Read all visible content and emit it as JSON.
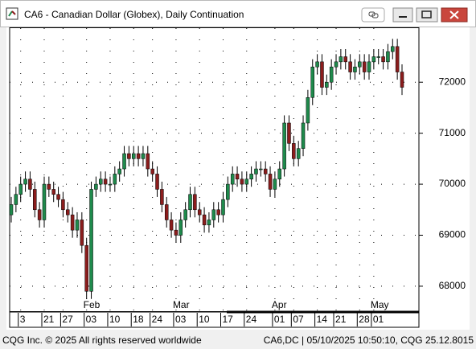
{
  "chart_data": {
    "type": "candlestick",
    "title": "CA6 - Canadian Dollar (Globex), Daily Continuation",
    "categories": [
      null,
      null,
      "3",
      null,
      null,
      null,
      null,
      "21",
      null,
      null,
      null,
      "27",
      null,
      null,
      null,
      null,
      "03",
      null,
      null,
      null,
      null,
      "10",
      null,
      null,
      null,
      null,
      "18",
      null,
      null,
      null,
      "24",
      null,
      null,
      null,
      null,
      "03",
      null,
      null,
      null,
      null,
      "10",
      null,
      null,
      null,
      null,
      "17",
      null,
      null,
      null,
      null,
      "24",
      null,
      null,
      null,
      null,
      null,
      "01",
      null,
      null,
      null,
      "07",
      null,
      null,
      null,
      null,
      "14",
      null,
      null,
      null,
      "21",
      null,
      null,
      null,
      null,
      "28",
      null,
      null,
      "01",
      null,
      null,
      null,
      null,
      null,
      null
    ],
    "months": [
      null,
      null,
      null,
      null,
      null,
      null,
      null,
      null,
      null,
      null,
      null,
      null,
      null,
      null,
      null,
      null,
      "Feb",
      null,
      null,
      null,
      null,
      null,
      null,
      null,
      null,
      null,
      null,
      null,
      null,
      null,
      null,
      null,
      null,
      null,
      null,
      "Mar",
      null,
      null,
      null,
      null,
      null,
      null,
      null,
      null,
      null,
      null,
      null,
      null,
      null,
      null,
      null,
      null,
      null,
      null,
      null,
      null,
      "Apr",
      null,
      null,
      null,
      null,
      null,
      null,
      null,
      null,
      null,
      null,
      null,
      null,
      null,
      null,
      null,
      null,
      null,
      null,
      null,
      null,
      "May",
      null,
      null,
      null,
      null,
      null,
      null
    ],
    "open": [
      69400,
      69600,
      69800,
      70000,
      70100,
      69900,
      69500,
      69300,
      70000,
      69900,
      69800,
      69700,
      69500,
      69400,
      69100,
      69300,
      68800,
      67900,
      69900,
      70000,
      70100,
      70000,
      70000,
      70200,
      70300,
      70600,
      70500,
      70600,
      70500,
      70600,
      70300,
      70200,
      69900,
      69600,
      69300,
      69100,
      69000,
      69300,
      69500,
      69800,
      69500,
      69400,
      69200,
      69300,
      69500,
      69400,
      69700,
      70000,
      70200,
      70100,
      70000,
      70100,
      70200,
      70300,
      70300,
      70200,
      69900,
      70100,
      70300,
      71200,
      70800,
      70500,
      70700,
      71200,
      71700,
      72300,
      72400,
      71900,
      72000,
      72300,
      72400,
      72500,
      72400,
      72200,
      72300,
      72400,
      72200,
      72400,
      72500,
      72500,
      72400,
      72600,
      72700,
      72200
    ],
    "high": [
      69750,
      69950,
      70150,
      70250,
      70250,
      70050,
      69650,
      70150,
      70150,
      70050,
      69950,
      69850,
      69650,
      69550,
      69450,
      69450,
      68950,
      70050,
      70150,
      70250,
      70250,
      70150,
      70350,
      70450,
      70750,
      70750,
      70750,
      70750,
      70750,
      70750,
      70450,
      70350,
      70050,
      69750,
      69450,
      69250,
      69450,
      69650,
      69950,
      69950,
      69650,
      69550,
      69450,
      69650,
      69650,
      69850,
      70150,
      70350,
      70350,
      70250,
      70250,
      70350,
      70450,
      70450,
      70450,
      70350,
      70250,
      70450,
      71350,
      71350,
      70950,
      70850,
      71350,
      71850,
      72450,
      72550,
      72550,
      72150,
      72450,
      72550,
      72650,
      72650,
      72550,
      72450,
      72550,
      72550,
      72550,
      72650,
      72650,
      72650,
      72750,
      72850,
      72850,
      72350
    ],
    "low": [
      69250,
      69450,
      69650,
      69850,
      69750,
      69350,
      69150,
      69150,
      69750,
      69650,
      69550,
      69350,
      69250,
      68950,
      68950,
      68650,
      67750,
      67750,
      69750,
      69850,
      69850,
      69850,
      69850,
      70050,
      70150,
      70350,
      70350,
      70350,
      70350,
      70150,
      70050,
      69750,
      69450,
      69150,
      68950,
      68850,
      68850,
      69150,
      69350,
      69350,
      69250,
      69050,
      69050,
      69150,
      69250,
      69250,
      69550,
      69850,
      69950,
      69850,
      69850,
      69950,
      70050,
      70150,
      70050,
      69750,
      69750,
      69950,
      70150,
      70650,
      70350,
      70350,
      70550,
      71050,
      71550,
      72150,
      71750,
      71750,
      71850,
      72150,
      72250,
      72250,
      72050,
      72050,
      72150,
      72050,
      72050,
      72250,
      72350,
      72250,
      72250,
      72450,
      72050,
      71750
    ],
    "close": [
      69600,
      69800,
      70000,
      70100,
      69900,
      69500,
      69300,
      70000,
      69900,
      69800,
      69700,
      69500,
      69400,
      69100,
      69300,
      68800,
      67900,
      69900,
      70000,
      70100,
      70000,
      70000,
      70200,
      70300,
      70600,
      70500,
      70600,
      70500,
      70600,
      70300,
      70200,
      69900,
      69600,
      69300,
      69100,
      69000,
      69300,
      69500,
      69800,
      69500,
      69400,
      69200,
      69300,
      69500,
      69400,
      69700,
      70000,
      70200,
      70100,
      70000,
      70100,
      70200,
      70300,
      70300,
      70200,
      69900,
      70100,
      70300,
      71200,
      70800,
      70500,
      70700,
      71200,
      71700,
      72300,
      72400,
      71900,
      72000,
      72300,
      72400,
      72500,
      72400,
      72200,
      72300,
      72400,
      72200,
      72400,
      72500,
      72500,
      72400,
      72600,
      72700,
      72200,
      71900
    ],
    "up_color": "#1f8a4c",
    "down_color": "#8b1d1d",
    "ylim": [
      67510,
      73060
    ],
    "yticks": [
      68000,
      69000,
      70000,
      71000,
      72000
    ],
    "grid": true
  },
  "footer_left": "CQG Inc. © 2025 All rights reserved worldwide",
  "footer_right": "CA6,DC | 05/10/2025 10:50:10, CQG 25.12.8015"
}
